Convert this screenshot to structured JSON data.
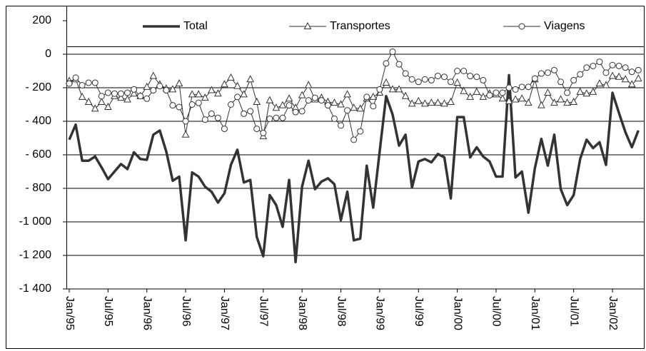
{
  "chart_data": {
    "type": "line",
    "categories": [
      "Jan/95",
      null,
      null,
      null,
      null,
      null,
      "Jul/95",
      null,
      null,
      null,
      null,
      null,
      "Jan/96",
      null,
      null,
      null,
      null,
      null,
      "Jul/96",
      null,
      null,
      null,
      null,
      null,
      "Jan/97",
      null,
      null,
      null,
      null,
      null,
      "Jul/97",
      null,
      null,
      null,
      null,
      null,
      "Jan/98",
      null,
      null,
      null,
      null,
      null,
      "Jul/98",
      null,
      null,
      null,
      null,
      null,
      "Jan/99",
      null,
      null,
      null,
      null,
      null,
      "Jul/99",
      null,
      null,
      null,
      null,
      null,
      "Jan/00",
      null,
      null,
      null,
      null,
      null,
      "Jul/00",
      null,
      null,
      null,
      null,
      null,
      "Jan/01",
      null,
      null,
      null,
      null,
      null,
      "Jul/01",
      null,
      null,
      null,
      null,
      null,
      "Jan/02",
      null,
      null,
      null,
      null
    ],
    "series": [
      {
        "name": "Total",
        "color": "#333333",
        "line_width": 3.5,
        "marker": "none",
        "values": [
          -510,
          -420,
          -635,
          -635,
          -610,
          -675,
          -745,
          -700,
          -655,
          -685,
          -585,
          -625,
          -630,
          -480,
          -455,
          -580,
          -755,
          -730,
          -1110,
          -705,
          -730,
          -790,
          -820,
          -885,
          -830,
          -660,
          -570,
          -765,
          -750,
          -1090,
          -1205,
          -840,
          -900,
          -1030,
          -750,
          -1240,
          -790,
          -635,
          -805,
          -760,
          -740,
          -775,
          -990,
          -820,
          -1110,
          -1100,
          -665,
          -915,
          -580,
          -250,
          -360,
          -545,
          -480,
          -795,
          -640,
          -625,
          -645,
          -595,
          -615,
          -860,
          -375,
          -375,
          -615,
          -555,
          -610,
          -640,
          -730,
          -730,
          -125,
          -735,
          -700,
          -945,
          -680,
          -505,
          -665,
          -480,
          -805,
          -900,
          -840,
          -625,
          -510,
          -560,
          -525,
          -660,
          -230,
          -350,
          -465,
          -555,
          -455
        ]
      },
      {
        "name": "Transportes",
        "color": "#333333",
        "line_width": 1,
        "marker": "triangle",
        "values": [
          -160,
          -150,
          -255,
          -285,
          -325,
          -285,
          -315,
          -250,
          -260,
          -270,
          -235,
          -250,
          -195,
          -130,
          -180,
          -205,
          -210,
          -175,
          -480,
          -240,
          -240,
          -260,
          -215,
          -235,
          -180,
          -140,
          -190,
          -240,
          -150,
          -285,
          -490,
          -275,
          -320,
          -305,
          -265,
          -320,
          -245,
          -185,
          -270,
          -260,
          -285,
          -290,
          -300,
          -240,
          -320,
          -325,
          -265,
          -255,
          -230,
          -170,
          -210,
          -210,
          -250,
          -295,
          -280,
          -295,
          -290,
          -290,
          -295,
          -285,
          -170,
          -220,
          -255,
          -225,
          -255,
          -235,
          -240,
          -265,
          -280,
          -270,
          -265,
          -290,
          -150,
          -305,
          -230,
          -290,
          -270,
          -290,
          -285,
          -225,
          -235,
          -225,
          -175,
          -185,
          -130,
          -135,
          -150,
          -180,
          -145
        ]
      },
      {
        "name": "Viagens",
        "color": "#333333",
        "line_width": 1,
        "marker": "circle",
        "values": [
          -175,
          -140,
          -185,
          -170,
          -170,
          -250,
          -230,
          -235,
          -235,
          -230,
          -210,
          -250,
          -265,
          -215,
          -190,
          -215,
          -305,
          -315,
          -400,
          -300,
          -290,
          -390,
          -355,
          -380,
          -445,
          -300,
          -255,
          -355,
          -340,
          -445,
          -470,
          -385,
          -380,
          -380,
          -305,
          -345,
          -340,
          -275,
          -260,
          -275,
          -305,
          -385,
          -425,
          -335,
          -510,
          -460,
          -255,
          -310,
          -210,
          -55,
          15,
          -60,
          -115,
          -150,
          -165,
          -150,
          -155,
          -130,
          -135,
          -165,
          -100,
          -100,
          -130,
          -135,
          -155,
          -245,
          -230,
          -230,
          -200,
          -210,
          -195,
          -195,
          -145,
          -115,
          -110,
          -95,
          -165,
          -230,
          -155,
          -120,
          -80,
          -70,
          -45,
          -110,
          -65,
          -70,
          -80,
          -105,
          -95
        ]
      }
    ],
    "ylim": [
      -1400,
      200
    ],
    "yticks": [
      200,
      0,
      {
        "value": -200,
        "label": "- 200"
      },
      {
        "value": -400,
        "label": "- 400"
      },
      {
        "value": -600,
        "label": "- 600"
      },
      {
        "value": -800,
        "label": "- 800"
      },
      {
        "value": -1000,
        "label": "-1 000"
      },
      {
        "value": -1200,
        "label": "-1 200"
      },
      {
        "value": -1400,
        "label": "-1 400"
      }
    ],
    "grid": true
  }
}
